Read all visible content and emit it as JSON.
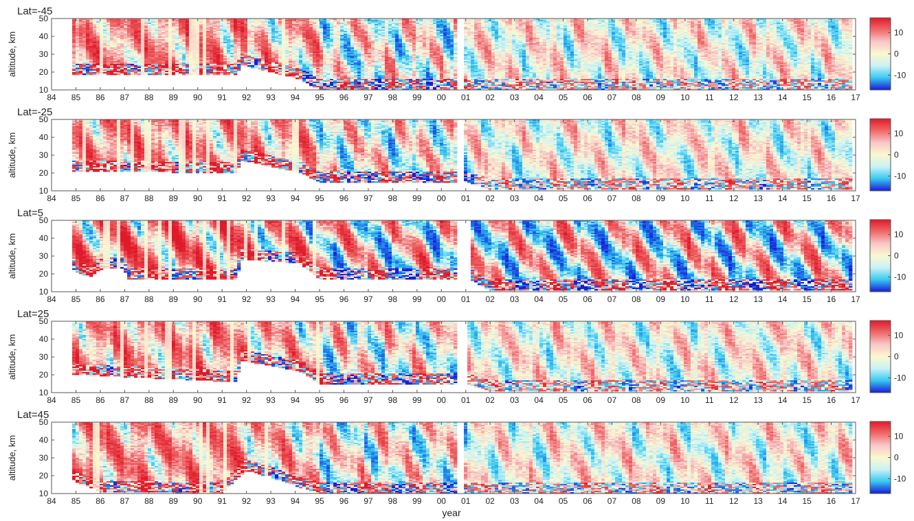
{
  "chart_data": {
    "type": "heatmap",
    "xlabel": "year",
    "ylabel": "altitude, km",
    "x_tick_labels": [
      "84",
      "85",
      "86",
      "87",
      "88",
      "89",
      "90",
      "91",
      "92",
      "93",
      "94",
      "95",
      "96",
      "97",
      "98",
      "99",
      "00",
      "01",
      "02",
      "03",
      "04",
      "05",
      "06",
      "07",
      "08",
      "09",
      "10",
      "11",
      "12",
      "13",
      "14",
      "15",
      "16",
      "17"
    ],
    "xlim": [
      1984,
      2017
    ],
    "y_ticks": [
      10,
      20,
      30,
      40,
      50
    ],
    "ylim": [
      10,
      50
    ],
    "colorbar": {
      "ticks": [
        10,
        0,
        -10
      ],
      "range": [
        -17,
        17
      ],
      "colors": [
        "#1a1ad8",
        "#39c8f0",
        "#c8f2f6",
        "#fbf8d0",
        "#f8c8c8",
        "#f06a6a",
        "#e01a2a"
      ]
    },
    "grid": false,
    "panels": [
      {
        "title": "Lat=-45",
        "data_start_year": 1984.8,
        "data_end_year": 2016.9,
        "data_gap_years": [
          2000.7,
          2000.9
        ],
        "lower_boundary_km": [
          [
            1984.8,
            18.5
          ],
          [
            1991.6,
            18.5
          ],
          [
            1991.8,
            24
          ],
          [
            1994.2,
            16
          ],
          [
            1995.0,
            10
          ],
          [
            2016.9,
            10
          ]
        ],
        "upper_region": "red-dominant in 1984-1994, mixed afterwards",
        "descent_pattern": "tilted bands"
      },
      {
        "title": "Lat=-25",
        "data_start_year": 1984.8,
        "data_end_year": 2016.9,
        "data_gap_years": [
          2000.6,
          2000.9
        ],
        "lower_boundary_km": [
          [
            1984.8,
            21
          ],
          [
            1991.6,
            20
          ],
          [
            1991.8,
            27
          ],
          [
            1994.2,
            20
          ],
          [
            1995.0,
            15
          ],
          [
            2000.6,
            15
          ],
          [
            2001.0,
            15
          ],
          [
            2002.0,
            11
          ],
          [
            2016.9,
            11
          ]
        ]
      },
      {
        "title": "Lat=5",
        "data_start_year": 1984.8,
        "data_end_year": 2016.9,
        "data_gap_years": [
          2000.7,
          2001.2
        ],
        "lower_boundary_km": [
          [
            1984.8,
            22
          ],
          [
            1985.6,
            18
          ],
          [
            1986.1,
            23
          ],
          [
            1987.0,
            23
          ],
          [
            1987.1,
            17
          ],
          [
            1991.6,
            17
          ],
          [
            1991.8,
            28
          ],
          [
            1994.2,
            26
          ],
          [
            1995.0,
            17
          ],
          [
            2000.7,
            17
          ],
          [
            2001.2,
            17
          ],
          [
            2001.9,
            11
          ],
          [
            2016.9,
            11
          ]
        ]
      },
      {
        "title": "Lat=25",
        "data_start_year": 1984.8,
        "data_end_year": 2016.9,
        "data_gap_years": [
          2000.7,
          2001.0
        ],
        "lower_boundary_km": [
          [
            1984.8,
            20
          ],
          [
            1991.6,
            16
          ],
          [
            1991.8,
            28
          ],
          [
            1994.2,
            22
          ],
          [
            1995.0,
            15
          ],
          [
            2000.7,
            15
          ],
          [
            2001.0,
            15
          ],
          [
            2002.0,
            11
          ],
          [
            2016.9,
            11
          ]
        ]
      },
      {
        "title": "Lat=45",
        "data_start_year": 1984.8,
        "data_end_year": 2016.9,
        "data_gap_years": [
          2000.7,
          2000.9
        ],
        "lower_boundary_km": [
          [
            1984.8,
            18
          ],
          [
            1986.0,
            11
          ],
          [
            1991.0,
            10
          ],
          [
            1991.6,
            18
          ],
          [
            1992.0,
            23
          ],
          [
            1993.5,
            17
          ],
          [
            1994.3,
            13
          ],
          [
            1995.0,
            10
          ],
          [
            2016.9,
            10
          ]
        ]
      }
    ]
  }
}
